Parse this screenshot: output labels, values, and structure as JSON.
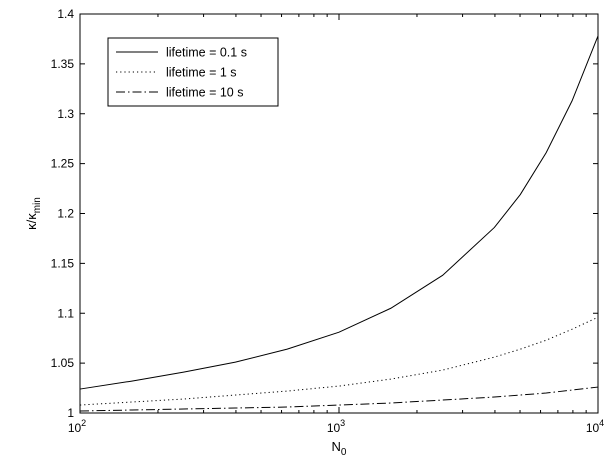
{
  "chart_data": {
    "type": "line",
    "x_scale": "log",
    "xlim": [
      100,
      10000
    ],
    "ylim": [
      1,
      1.4
    ],
    "x_ticks": [
      {
        "value": 100,
        "base": "10",
        "exp": "2"
      },
      {
        "value": 1000,
        "base": "10",
        "exp": "3"
      },
      {
        "value": 10000,
        "base": "10",
        "exp": "4"
      }
    ],
    "y_ticks": [
      {
        "value": 1,
        "label": "1"
      },
      {
        "value": 1.05,
        "label": "1.05"
      },
      {
        "value": 1.1,
        "label": "1.1"
      },
      {
        "value": 1.15,
        "label": "1.15"
      },
      {
        "value": 1.2,
        "label": "1.2"
      },
      {
        "value": 1.25,
        "label": "1.25"
      },
      {
        "value": 1.3,
        "label": "1.3"
      },
      {
        "value": 1.35,
        "label": "1.35"
      },
      {
        "value": 1.4,
        "label": "1.4"
      }
    ],
    "xlabel": {
      "main": "N",
      "sub": "0"
    },
    "ylabel": {
      "main": "κ/κ",
      "sub": "min"
    },
    "grid": false,
    "legend_position": "top-left",
    "x": [
      100,
      158.5,
      251.2,
      398.1,
      631,
      1000,
      1585,
      2512,
      3981,
      5012,
      6310,
      7943,
      10000
    ],
    "series": [
      {
        "name": "lifetime = 0.1 s",
        "style": "solid",
        "values": [
          1.024,
          1.032,
          1.041,
          1.051,
          1.064,
          1.081,
          1.105,
          1.138,
          1.186,
          1.219,
          1.261,
          1.313,
          1.378
        ]
      },
      {
        "name": "lifetime = 1 s",
        "style": "dotted",
        "values": [
          1.008,
          1.011,
          1.014,
          1.018,
          1.022,
          1.027,
          1.034,
          1.043,
          1.056,
          1.064,
          1.073,
          1.084,
          1.096
        ]
      },
      {
        "name": "lifetime = 10 s",
        "style": "dashdot",
        "values": [
          1.002,
          1.003,
          1.004,
          1.005,
          1.006,
          1.008,
          1.01,
          1.013,
          1.016,
          1.018,
          1.02,
          1.023,
          1.026
        ]
      }
    ]
  }
}
